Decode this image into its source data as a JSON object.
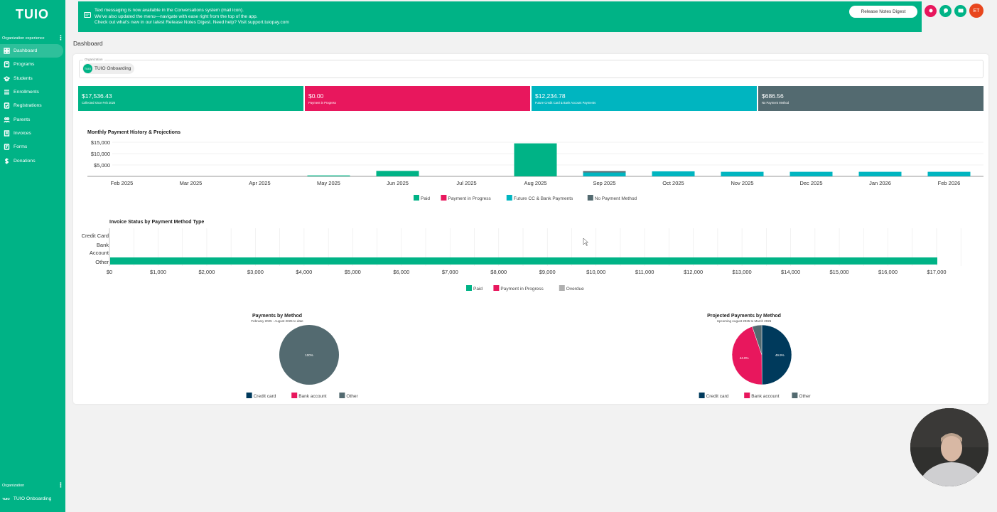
{
  "sidebar": {
    "logo": "TUIO",
    "org_experience_label": "Organization experience",
    "items": [
      {
        "label": "Dashboard",
        "icon": "dashboard-icon",
        "active": true
      },
      {
        "label": "Programs",
        "icon": "programs-icon"
      },
      {
        "label": "Students",
        "icon": "students-icon"
      },
      {
        "label": "Enrollments",
        "icon": "enrollments-icon"
      },
      {
        "label": "Registrations",
        "icon": "registrations-icon"
      },
      {
        "label": "Parents",
        "icon": "parents-icon"
      },
      {
        "label": "Invoices",
        "icon": "invoices-icon"
      },
      {
        "label": "Forms",
        "icon": "forms-icon"
      },
      {
        "label": "Donations",
        "icon": "donations-icon"
      }
    ],
    "org_label": "Organization",
    "org_short": "TUIO",
    "org_name": "TUIO Onboarding"
  },
  "banner": {
    "line1": "Text messaging is now available in the Conversations system (mail icon).",
    "line2": "We've also updated the menu—navigate with ease right from the top of the app.",
    "line3": "Check out what's new in our latest Release Notes Digest. Need help? Visit support.tuiopay.com",
    "button_label": "Release Notes Digest"
  },
  "header": {
    "avatar_initials": "ET"
  },
  "page": {
    "title": "Dashboard"
  },
  "org_field": {
    "label": "Organization",
    "chip_initials": "TUIO",
    "chip_value": "TUIO Onboarding"
  },
  "colors": {
    "paid": "#00b386",
    "in_progress": "#e8175d",
    "future": "#00b5c0",
    "no_method": "#536a70",
    "overdue": "#b0b0b0",
    "credit": "#003a5c",
    "bank": "#e8175d",
    "other": "#536a70"
  },
  "stats": [
    {
      "value": "$17,536.43",
      "label": "Collected since Feb 2025",
      "color": "#00b386"
    },
    {
      "value": "$0.00",
      "label": "Payment in Progress",
      "color": "#e8175d"
    },
    {
      "value": "$12,234.78",
      "label": "Future Credit Card & Bank Account Payments",
      "color": "#00b5c0"
    },
    {
      "value": "$686.56",
      "label": "No Payment Method",
      "color": "#536a70"
    }
  ],
  "chart_data": [
    {
      "type": "bar",
      "title": "Monthly Payment History & Projections",
      "categories": [
        "Feb 2025",
        "Mar 2025",
        "Apr 2025",
        "May 2025",
        "Jun 2025",
        "Jul 2025",
        "Aug 2025",
        "Sep 2025",
        "Oct 2025",
        "Nov 2025",
        "Dec 2025",
        "Jan 2026",
        "Feb 2026"
      ],
      "series": [
        {
          "name": "Paid",
          "values": [
            0,
            0,
            0,
            400,
            2400,
            0,
            14500,
            0,
            0,
            0,
            0,
            0,
            0
          ]
        },
        {
          "name": "Payment in Progress",
          "values": [
            0,
            0,
            0,
            0,
            0,
            0,
            0,
            0,
            0,
            0,
            0,
            0,
            0
          ]
        },
        {
          "name": "Future CC & Bank Payments",
          "values": [
            0,
            0,
            0,
            0,
            0,
            0,
            0,
            1700,
            2200,
            2000,
            2000,
            2000,
            2000
          ]
        },
        {
          "name": "No Payment Method",
          "values": [
            0,
            0,
            0,
            0,
            0,
            0,
            0,
            600,
            0,
            0,
            0,
            0,
            0
          ]
        }
      ],
      "yticks": [
        "$15,000",
        "$10,000",
        "$5,000"
      ],
      "ylim": [
        0,
        15000
      ]
    },
    {
      "type": "bar",
      "orientation": "horizontal",
      "title": "Invoice Status by Payment Method Type",
      "categories": [
        "Credit Card",
        "Bank Account",
        "Other"
      ],
      "series": [
        {
          "name": "Paid",
          "values": [
            0,
            0,
            17000
          ]
        },
        {
          "name": "Payment in Progress",
          "values": [
            0,
            0,
            0
          ]
        },
        {
          "name": "Overdue",
          "values": [
            0,
            0,
            0
          ]
        }
      ],
      "xticks": [
        "$0",
        "$1,000",
        "$2,000",
        "$3,000",
        "$4,000",
        "$5,000",
        "$6,000",
        "$7,000",
        "$8,000",
        "$9,000",
        "$10,000",
        "$11,000",
        "$12,000",
        "$13,000",
        "$14,000",
        "$15,000",
        "$16,000",
        "$17,000"
      ],
      "xlim": [
        0,
        17000
      ]
    },
    {
      "type": "pie",
      "title": "Payments by Method",
      "subtitle": "February 2025 - August 2025 to date",
      "slices": [
        {
          "name": "Credit card",
          "value": 0
        },
        {
          "name": "Bank account",
          "value": 0
        },
        {
          "name": "Other",
          "value": 100
        }
      ],
      "labels": [
        "100%"
      ],
      "legend": [
        "Credit card",
        "Bank account",
        "Other"
      ]
    },
    {
      "type": "pie",
      "title": "Projected Payments by Method",
      "subtitle": "Upcoming August 2025 to March 2026",
      "slices": [
        {
          "name": "Credit card",
          "value": 49.9
        },
        {
          "name": "Bank account",
          "value": 44.9
        },
        {
          "name": "Other",
          "value": 5.2
        }
      ],
      "labels": [
        "49.9%",
        "44.9%"
      ],
      "legend": [
        "Credit card",
        "Bank account",
        "Other"
      ]
    }
  ]
}
